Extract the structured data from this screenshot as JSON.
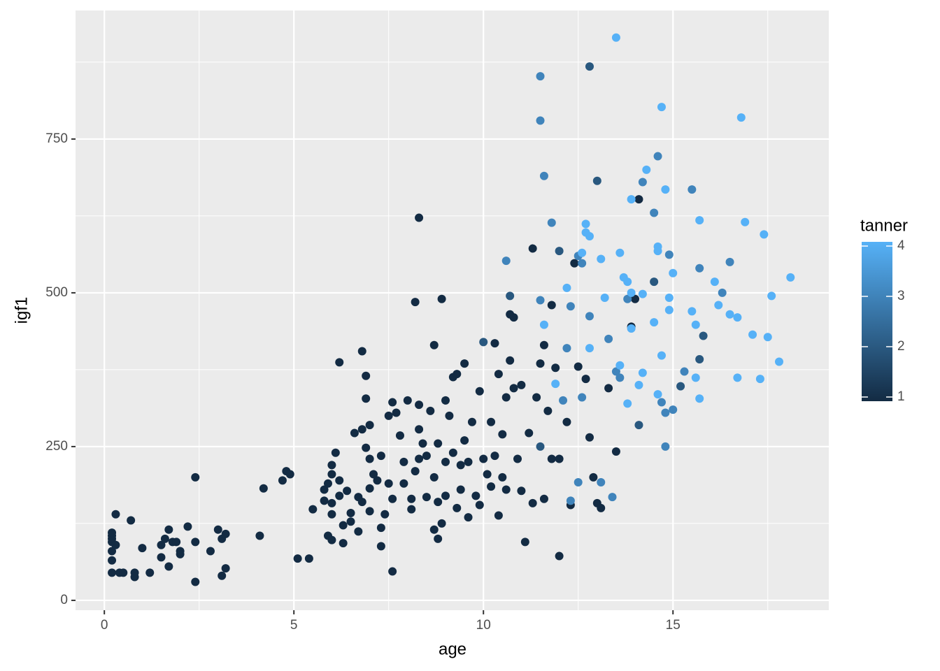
{
  "chart_data": {
    "type": "scatter",
    "x_label": "age",
    "y_label": "igf1",
    "xlim": [
      -0.76,
      19.11
    ],
    "ylim": [
      -16,
      959
    ],
    "xticks": [
      0,
      5,
      10,
      15
    ],
    "yticks": [
      0,
      250,
      500,
      750
    ],
    "x_minor_grid": [
      2.5,
      7.5,
      12.5,
      17.5
    ],
    "y_minor_grid": [
      125,
      375,
      625,
      875
    ],
    "grid": true,
    "panel_color": "#EBEBEB",
    "color_scale": {
      "title": "tanner",
      "lim": [
        1,
        4
      ],
      "ticks": [
        1,
        2,
        3,
        4
      ],
      "low": "#132B43",
      "high": "#56B1F7"
    },
    "points": [
      [
        0.2,
        45,
        1
      ],
      [
        0.2,
        65,
        1
      ],
      [
        0.2,
        80,
        1
      ],
      [
        0.2,
        95,
        1
      ],
      [
        0.2,
        100,
        1
      ],
      [
        0.2,
        105,
        1
      ],
      [
        0.2,
        110,
        1
      ],
      [
        0.3,
        90,
        1
      ],
      [
        0.3,
        140,
        1
      ],
      [
        0.4,
        45,
        1
      ],
      [
        0.5,
        45,
        1
      ],
      [
        0.7,
        130,
        1
      ],
      [
        0.8,
        45,
        1
      ],
      [
        0.8,
        38,
        1
      ],
      [
        1,
        85,
        1
      ],
      [
        1.2,
        45,
        1
      ],
      [
        1.5,
        70,
        1
      ],
      [
        1.5,
        90,
        1
      ],
      [
        1.6,
        100,
        1
      ],
      [
        1.7,
        115,
        1
      ],
      [
        1.7,
        55,
        1
      ],
      [
        1.8,
        95,
        1
      ],
      [
        1.9,
        95,
        1
      ],
      [
        2,
        80,
        1
      ],
      [
        2,
        75,
        1
      ],
      [
        2.2,
        120,
        1
      ],
      [
        2.4,
        95,
        1
      ],
      [
        2.4,
        200,
        1
      ],
      [
        2.4,
        30,
        1
      ],
      [
        2.8,
        80,
        1
      ],
      [
        3,
        115,
        1
      ],
      [
        3.1,
        40,
        1
      ],
      [
        3.1,
        100,
        1
      ],
      [
        3.2,
        108,
        1
      ],
      [
        3.2,
        52,
        1
      ],
      [
        4.1,
        105,
        1
      ],
      [
        4.2,
        182,
        1
      ],
      [
        4.7,
        195,
        1
      ],
      [
        4.8,
        210,
        1
      ],
      [
        4.9,
        205,
        1
      ],
      [
        5.1,
        68,
        1
      ],
      [
        5.4,
        68,
        1
      ],
      [
        5.5,
        148,
        1
      ],
      [
        5.8,
        180,
        1
      ],
      [
        5.8,
        162,
        1
      ],
      [
        5.9,
        190,
        1
      ],
      [
        5.9,
        105,
        1
      ],
      [
        6,
        98,
        1
      ],
      [
        6,
        140,
        1
      ],
      [
        6,
        205,
        1
      ],
      [
        6,
        220,
        1
      ],
      [
        6,
        158,
        1
      ],
      [
        6.1,
        240,
        1
      ],
      [
        6.2,
        170,
        1
      ],
      [
        6.2,
        195,
        1
      ],
      [
        6.3,
        122,
        1
      ],
      [
        6.3,
        93,
        1
      ],
      [
        6.2,
        387,
        1
      ],
      [
        6.4,
        178,
        1
      ],
      [
        6.5,
        142,
        1
      ],
      [
        6.5,
        128,
        1
      ],
      [
        6.6,
        272,
        1
      ],
      [
        6.7,
        112,
        1
      ],
      [
        6.7,
        168,
        1
      ],
      [
        6.8,
        278,
        1
      ],
      [
        6.8,
        405,
        1
      ],
      [
        6.8,
        160,
        1
      ],
      [
        6.9,
        365,
        1
      ],
      [
        6.9,
        328,
        1
      ],
      [
        6.9,
        248,
        1
      ],
      [
        7,
        230,
        1
      ],
      [
        7,
        182,
        1
      ],
      [
        7,
        285,
        1
      ],
      [
        7,
        145,
        1
      ],
      [
        7.1,
        205,
        1
      ],
      [
        7.2,
        195,
        1
      ],
      [
        7.3,
        118,
        1
      ],
      [
        7.3,
        88,
        1
      ],
      [
        7.3,
        235,
        1
      ],
      [
        7.4,
        140,
        1
      ],
      [
        7.5,
        190,
        1
      ],
      [
        7.5,
        300,
        1
      ],
      [
        7.6,
        322,
        1
      ],
      [
        7.6,
        47,
        1
      ],
      [
        7.6,
        165,
        1
      ],
      [
        7.7,
        305,
        1
      ],
      [
        7.8,
        268,
        1
      ],
      [
        7.9,
        225,
        1
      ],
      [
        7.9,
        190,
        1
      ],
      [
        8,
        325,
        1
      ],
      [
        8.1,
        165,
        1
      ],
      [
        8.1,
        148,
        1
      ],
      [
        8.2,
        485,
        1
      ],
      [
        8.2,
        210,
        1
      ],
      [
        8.3,
        622,
        1
      ],
      [
        8.3,
        318,
        1
      ],
      [
        8.3,
        278,
        1
      ],
      [
        8.3,
        230,
        1
      ],
      [
        8.4,
        255,
        1
      ],
      [
        8.5,
        168,
        1
      ],
      [
        8.5,
        235,
        1
      ],
      [
        8.6,
        308,
        1
      ],
      [
        8.7,
        200,
        1
      ],
      [
        8.7,
        115,
        1
      ],
      [
        8.7,
        415,
        1
      ],
      [
        8.8,
        255,
        1
      ],
      [
        8.8,
        100,
        1
      ],
      [
        8.8,
        160,
        1
      ],
      [
        8.9,
        490,
        1
      ],
      [
        8.9,
        125,
        1
      ],
      [
        9,
        325,
        1
      ],
      [
        9,
        225,
        1
      ],
      [
        9,
        170,
        1
      ],
      [
        9.1,
        300,
        1
      ],
      [
        9.2,
        363,
        1
      ],
      [
        9.2,
        240,
        1
      ],
      [
        9.3,
        368,
        1
      ],
      [
        9.3,
        150,
        1
      ],
      [
        9.4,
        220,
        1
      ],
      [
        9.4,
        180,
        1
      ],
      [
        9.5,
        385,
        1
      ],
      [
        9.5,
        260,
        1
      ],
      [
        9.6,
        135,
        1
      ],
      [
        9.6,
        225,
        1
      ],
      [
        9.7,
        290,
        1
      ],
      [
        9.8,
        170,
        1
      ],
      [
        9.9,
        340,
        1
      ],
      [
        9.9,
        155,
        1
      ],
      [
        10,
        230,
        1
      ],
      [
        10,
        420,
        2
      ],
      [
        10.1,
        205,
        1
      ],
      [
        10.2,
        290,
        1
      ],
      [
        10.2,
        185,
        1
      ],
      [
        10.3,
        418,
        1
      ],
      [
        10.3,
        235,
        1
      ],
      [
        10.4,
        138,
        1
      ],
      [
        10.4,
        368,
        1
      ],
      [
        10.5,
        270,
        1
      ],
      [
        10.5,
        200,
        1
      ],
      [
        10.6,
        330,
        1
      ],
      [
        10.6,
        180,
        1
      ],
      [
        10.7,
        390,
        1
      ],
      [
        10.7,
        495,
        2
      ],
      [
        10.7,
        465,
        1
      ],
      [
        10.8,
        460,
        1
      ],
      [
        10.8,
        345,
        1
      ],
      [
        10.9,
        230,
        1
      ],
      [
        11,
        350,
        1
      ],
      [
        11,
        178,
        1
      ],
      [
        11.1,
        95,
        1
      ],
      [
        11.2,
        272,
        1
      ],
      [
        11.3,
        158,
        1
      ],
      [
        11.3,
        572,
        1
      ],
      [
        11.4,
        330,
        1
      ],
      [
        11.5,
        250,
        2
      ],
      [
        11.5,
        385,
        1
      ],
      [
        11.6,
        415,
        1
      ],
      [
        11.6,
        165,
        1
      ],
      [
        11.7,
        308,
        1
      ],
      [
        11.8,
        480,
        1
      ],
      [
        11.8,
        230,
        1
      ],
      [
        11.9,
        378,
        1
      ],
      [
        12,
        72,
        1
      ],
      [
        12,
        568,
        2
      ],
      [
        12,
        230,
        1
      ],
      [
        12.2,
        290,
        1
      ],
      [
        12.3,
        155,
        1
      ],
      [
        12.4,
        548,
        1
      ],
      [
        12.5,
        380,
        1
      ],
      [
        12.7,
        360,
        1
      ],
      [
        12.8,
        265,
        1
      ],
      [
        12.9,
        200,
        1
      ],
      [
        13,
        158,
        1
      ],
      [
        13.1,
        150,
        1
      ],
      [
        13.3,
        345,
        1
      ],
      [
        13.5,
        242,
        1
      ],
      [
        13.9,
        445,
        1
      ],
      [
        14,
        490,
        1
      ],
      [
        14.1,
        652,
        1
      ],
      [
        10.6,
        552,
        3
      ],
      [
        11.5,
        852,
        3
      ],
      [
        11.5,
        780,
        3
      ],
      [
        11.6,
        690,
        3
      ],
      [
        11.8,
        614,
        3
      ],
      [
        11.5,
        488,
        3
      ],
      [
        12.3,
        478,
        3
      ],
      [
        12.5,
        560,
        3
      ],
      [
        12.6,
        548,
        3
      ],
      [
        12.8,
        462,
        3
      ],
      [
        12.8,
        868,
        2
      ],
      [
        13,
        682,
        2
      ],
      [
        13.3,
        425,
        3
      ],
      [
        13.4,
        168,
        3
      ],
      [
        13.5,
        372,
        3
      ],
      [
        13.1,
        192,
        3
      ],
      [
        12.5,
        192,
        3
      ],
      [
        12.3,
        162,
        3
      ],
      [
        14.1,
        285,
        2
      ],
      [
        14.5,
        518,
        2
      ],
      [
        14.6,
        722,
        3
      ],
      [
        15.5,
        668,
        3
      ],
      [
        15.7,
        540,
        3
      ],
      [
        15.8,
        430,
        2
      ],
      [
        15.7,
        392,
        2
      ],
      [
        15.2,
        348,
        2
      ],
      [
        14.7,
        322,
        3
      ],
      [
        14.8,
        305,
        3
      ],
      [
        15,
        310,
        3
      ],
      [
        15.3,
        372,
        3
      ],
      [
        14.2,
        680,
        3
      ],
      [
        14.5,
        630,
        3
      ],
      [
        16.5,
        550,
        3
      ],
      [
        16.3,
        500,
        3
      ],
      [
        14.9,
        562,
        3
      ],
      [
        12.1,
        325,
        3
      ],
      [
        12.2,
        410,
        3
      ],
      [
        12.6,
        330,
        3
      ],
      [
        13.8,
        490,
        3
      ],
      [
        13.6,
        362,
        3
      ],
      [
        14.8,
        250,
        3
      ],
      [
        13.5,
        915,
        4
      ],
      [
        14.7,
        802,
        4
      ],
      [
        16.8,
        785,
        4
      ],
      [
        14.3,
        700,
        4
      ],
      [
        14.8,
        668,
        4
      ],
      [
        13.9,
        652,
        4
      ],
      [
        15.7,
        618,
        4
      ],
      [
        16.9,
        615,
        4
      ],
      [
        17.4,
        595,
        4
      ],
      [
        12.7,
        612,
        4
      ],
      [
        12.8,
        592,
        4
      ],
      [
        12.7,
        598,
        4
      ],
      [
        14.6,
        575,
        4
      ],
      [
        14.6,
        568,
        4
      ],
      [
        13.6,
        565,
        4
      ],
      [
        13.1,
        555,
        4
      ],
      [
        12.6,
        565,
        4
      ],
      [
        15,
        532,
        4
      ],
      [
        16.1,
        518,
        4
      ],
      [
        18.1,
        525,
        4
      ],
      [
        13.7,
        525,
        4
      ],
      [
        13.8,
        518,
        4
      ],
      [
        14.2,
        498,
        4
      ],
      [
        13.9,
        500,
        4
      ],
      [
        14.9,
        492,
        4
      ],
      [
        15.5,
        470,
        4
      ],
      [
        14.9,
        472,
        4
      ],
      [
        16.5,
        465,
        4
      ],
      [
        16.7,
        460,
        4
      ],
      [
        16.2,
        480,
        4
      ],
      [
        15.6,
        448,
        4
      ],
      [
        14.5,
        452,
        4
      ],
      [
        13.9,
        442,
        4
      ],
      [
        11.6,
        448,
        4
      ],
      [
        12.2,
        508,
        4
      ],
      [
        13.2,
        492,
        4
      ],
      [
        17.1,
        432,
        4
      ],
      [
        17.5,
        428,
        4
      ],
      [
        17.6,
        495,
        4
      ],
      [
        17.8,
        388,
        4
      ],
      [
        14.7,
        398,
        4
      ],
      [
        14.2,
        370,
        4
      ],
      [
        14.6,
        335,
        4
      ],
      [
        14.1,
        350,
        4
      ],
      [
        13.8,
        320,
        4
      ],
      [
        15.6,
        362,
        4
      ],
      [
        16.7,
        362,
        4
      ],
      [
        17.3,
        360,
        4
      ],
      [
        15.7,
        328,
        4
      ],
      [
        11.9,
        352,
        4
      ],
      [
        12.8,
        410,
        4
      ],
      [
        13.6,
        382,
        4
      ]
    ]
  }
}
